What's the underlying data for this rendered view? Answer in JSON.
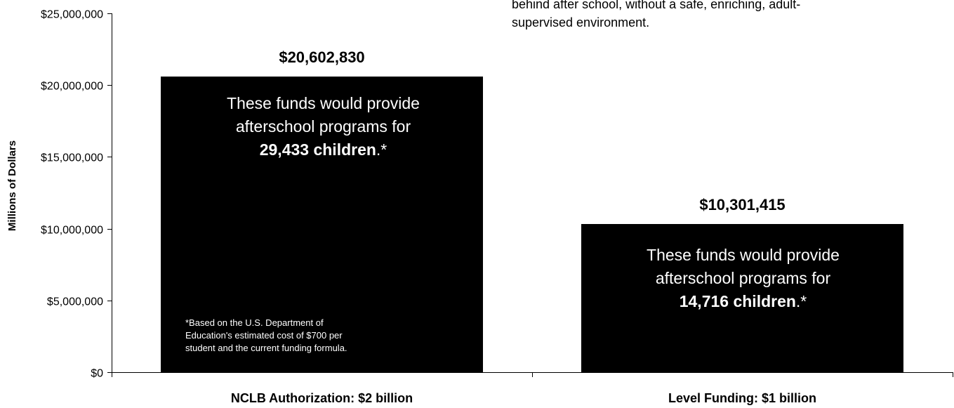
{
  "note": {
    "line1": "behind after school, without a safe, enriching, adult-",
    "line2": "supervised environment."
  },
  "callouts": [
    {
      "line1": "These funds would provide",
      "line2": "afterschool programs for",
      "bold": "29,433 children",
      "suffix": ".*"
    },
    {
      "line1": "These funds would provide",
      "line2": "afterschool programs for",
      "bold": "14,716 children",
      "suffix": ".*"
    }
  ],
  "footnote": {
    "line1": "*Based on the U.S. Department of",
    "line2": "Education's estimated cost of $700 per",
    "line3": "student and the current funding formula."
  },
  "chart_data": {
    "type": "bar",
    "categories": [
      "NCLB Authorization: $2 billion",
      "Level Funding:  $1 billion"
    ],
    "values": [
      20602830,
      10301415
    ],
    "data_labels": [
      "$20,602,830",
      "$10,301,415"
    ],
    "ylabel": "Millions of Dollars",
    "ylim": [
      0,
      25000000
    ],
    "yticks": [
      0,
      5000000,
      10000000,
      15000000,
      20000000,
      25000000
    ],
    "ytick_labels": [
      "$0",
      "$5,000,000",
      "$10,000,000",
      "$15,000,000",
      "$20,000,000",
      "$25,000,000"
    ],
    "bar_color": "#000000",
    "grid": false,
    "legend": "none"
  }
}
